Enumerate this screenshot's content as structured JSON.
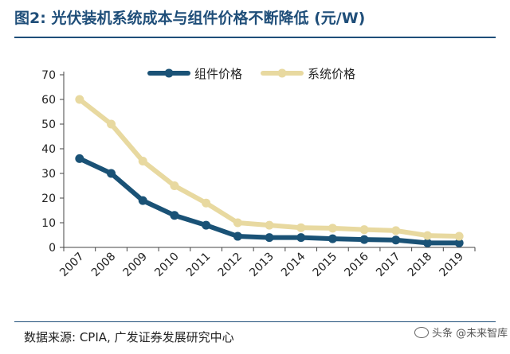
{
  "header": {
    "figure_label": "图2:",
    "title_text": "光伏装机系统成本与组件价格不断降低 (元/W)"
  },
  "footer": {
    "source": "数据来源: CPIA, 广发证券发展研究中心",
    "watermark": "头条 @未来智库"
  },
  "colors": {
    "series_module": "#1a5276",
    "series_system": "#e8d9a0",
    "title": "#1f4e79"
  },
  "chart_data": {
    "type": "line",
    "title": "光伏装机系统成本与组件价格不断降低 (元/W)",
    "xlabel": "",
    "ylabel": "",
    "categories": [
      "2007",
      "2008",
      "2009",
      "2010",
      "2011",
      "2012",
      "2013",
      "2014",
      "2015",
      "2016",
      "2017",
      "2018",
      "2019"
    ],
    "yticks": [
      0,
      10,
      20,
      30,
      40,
      50,
      60,
      70
    ],
    "ylim": [
      0,
      70
    ],
    "legend_position": "top",
    "series": [
      {
        "name": "组件价格",
        "color": "#1a5276",
        "values": [
          36,
          30,
          19,
          13,
          9,
          4.5,
          4,
          4,
          3.5,
          3.2,
          3,
          1.8,
          1.8
        ]
      },
      {
        "name": "系统价格",
        "color": "#e8d9a0",
        "values": [
          60,
          50,
          35,
          25,
          18,
          10,
          9,
          8,
          7.8,
          7.2,
          6.8,
          4.8,
          4.5
        ]
      }
    ]
  }
}
